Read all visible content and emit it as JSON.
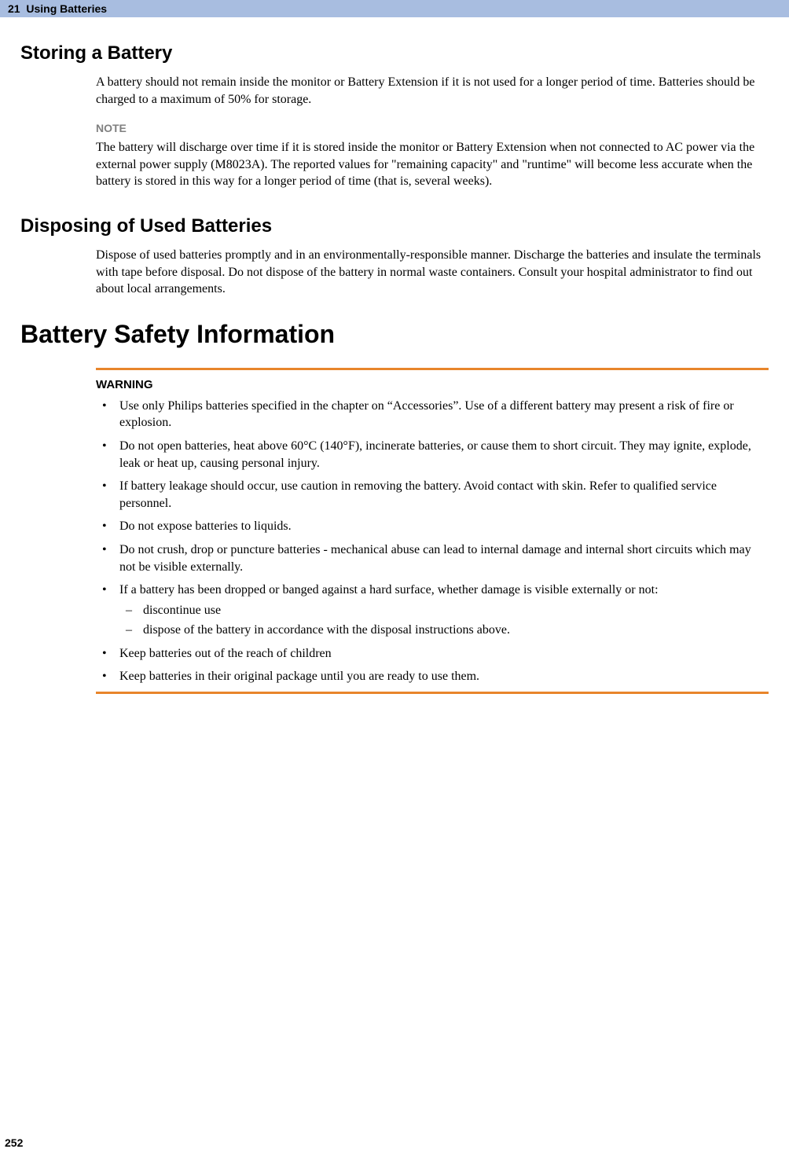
{
  "header": {
    "chapter_number": "21",
    "chapter_title": "Using Batteries"
  },
  "sections": {
    "storing": {
      "title": "Storing a Battery",
      "para": "A battery should not remain inside the monitor or Battery Extension if it is not used for a longer period of time. Batteries should be charged to a maximum of 50% for storage.",
      "note_label": "NOTE",
      "note_text": "The battery will discharge over time if it is stored inside the monitor or Battery Extension when not connected to AC power via the external power supply (M8023A). The reported values for \"remaining capacity\" and \"runtime\" will become less accurate when the battery is stored in this way for a longer period of time (that is, several weeks)."
    },
    "disposing": {
      "title": "Disposing of Used Batteries",
      "para": "Dispose of used batteries promptly and in an environmentally-responsible manner. Discharge the batteries and insulate the terminals with tape before disposal. Do not dispose of the battery in normal waste containers. Consult your hospital administrator to find out about local arrangements."
    },
    "safety": {
      "title": "Battery Safety Information",
      "warning_label": "WARNING",
      "bullets": [
        "Use only Philips batteries specified in the chapter on “Accessories”. Use of a different battery may present a risk of fire or explosion.",
        "Do not open batteries, heat above 60°C (140°F), incinerate batteries, or cause them to short circuit. They may ignite, explode, leak or heat up, causing personal injury.",
        "If battery leakage should occur, use caution in removing the battery. Avoid contact with skin. Refer to qualified service personnel.",
        "Do not expose batteries to liquids.",
        "Do not crush, drop or puncture batteries - mechanical abuse can lead to internal damage and internal short circuits which may not be visible externally.",
        "If a battery has been dropped or banged against a hard surface, whether damage is visible externally or not:",
        "Keep batteries out of the reach of children",
        "Keep batteries in their original package until you are ready to use them."
      ],
      "sub_dashes": [
        "discontinue use",
        "dispose of the battery in accordance with the disposal instructions above."
      ]
    }
  },
  "page_number": "252",
  "colors": {
    "header_bg": "#a8bde0",
    "note_gray": "#808080",
    "warning_rule": "#e8852b"
  }
}
